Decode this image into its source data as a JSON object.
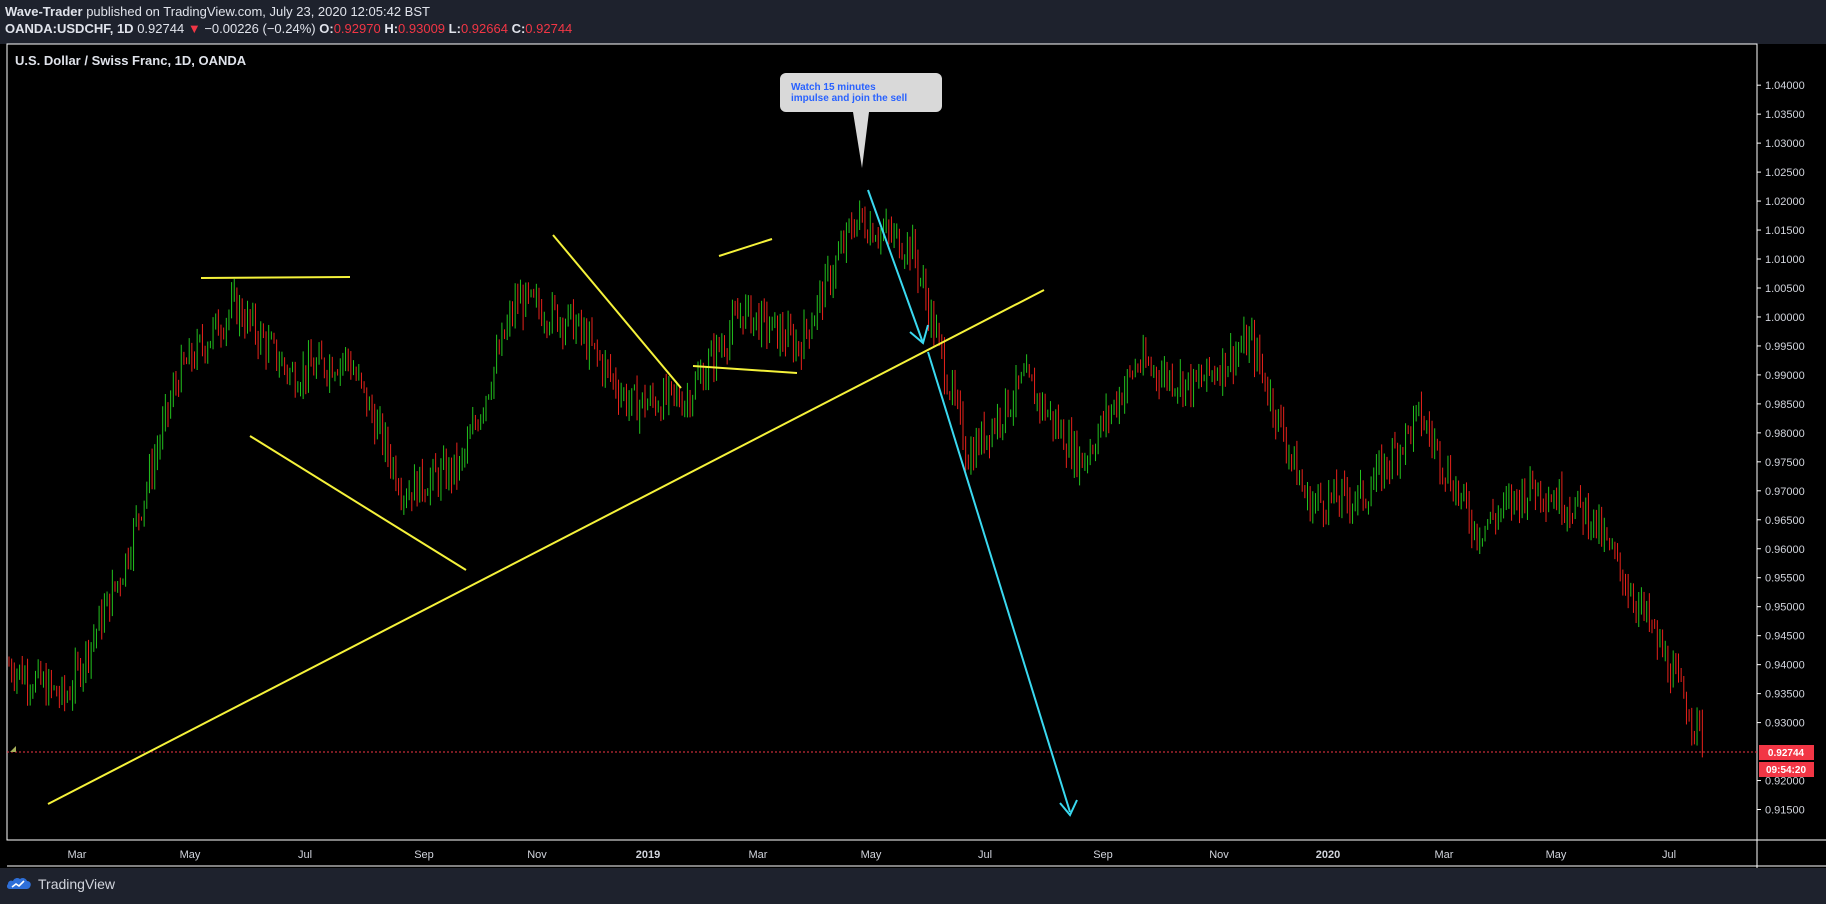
{
  "header": {
    "author": "Wave-Trader",
    "published_text": "published on TradingView.com, July 23, 2020 12:05:42 BST",
    "symbol": "OANDA:USDCHF, 1D",
    "last": "0.92744",
    "change_arrow": "▼",
    "change": "−0.00226 (−0.24%)",
    "o_label": "O:",
    "o_value": "0.92970",
    "h_label": "H:",
    "h_value": "0.93009",
    "l_label": "L:",
    "l_value": "0.92664",
    "c_label": "C:",
    "c_value": "0.92744"
  },
  "chart_title": "U.S. Dollar / Swiss Franc, 1D, OANDA",
  "annotation": {
    "line1": "Watch 15 minutes",
    "line2": "impulse and join the sell"
  },
  "price_axis": {
    "ticks": [
      "1.04000",
      "1.03500",
      "1.03000",
      "1.02500",
      "1.02000",
      "1.01500",
      "1.01000",
      "1.00500",
      "1.00000",
      "0.99500",
      "0.99000",
      "0.98500",
      "0.98000",
      "0.97500",
      "0.97000",
      "0.96500",
      "0.96000",
      "0.95500",
      "0.95000",
      "0.94500",
      "0.94000",
      "0.93500",
      "0.93000",
      "0.92000",
      "0.91500"
    ],
    "last_price_label": "0.92744",
    "countdown_label": "09:54:20"
  },
  "time_axis": {
    "ticks": [
      "Mar",
      "May",
      "Jul",
      "Sep",
      "Nov",
      "2019",
      "Mar",
      "May",
      "Jul",
      "Sep",
      "Nov",
      "2020",
      "Mar",
      "May",
      "Jul"
    ]
  },
  "footer": {
    "brand": "TradingView",
    "brand_icon": "tradingview-logo-icon"
  },
  "colors": {
    "up": "#22c11e",
    "down": "#e8221b",
    "trendline": "#f5f23a",
    "arrow": "#3ad9f0",
    "last_price": "#f23645",
    "annotation_bg": "#d9d9d9",
    "annotation_text": "#2962ff"
  },
  "chart_data": {
    "type": "candlestick",
    "symbol": "OANDA:USDCHF",
    "interval": "1D",
    "ylim": [
      0.9125,
      1.044
    ],
    "x": [
      "2018-01",
      "2018-02",
      "2018-03",
      "2018-04",
      "2018-05",
      "2018-06",
      "2018-07",
      "2018-08",
      "2018-09",
      "2018-10",
      "2018-11",
      "2018-12",
      "2019-01",
      "2019-02",
      "2019-03",
      "2019-04",
      "2019-05",
      "2019-06",
      "2019-07",
      "2019-08",
      "2019-09",
      "2019-10",
      "2019-11",
      "2019-12",
      "2020-01",
      "2020-02",
      "2020-03",
      "2020-04",
      "2020-05",
      "2020-06",
      "2020-07"
    ],
    "close": [
      0.94,
      0.934,
      0.956,
      0.99,
      1.002,
      0.99,
      0.993,
      0.97,
      0.974,
      1.003,
      0.999,
      0.985,
      0.986,
      1.001,
      0.995,
      1.017,
      1.012,
      0.976,
      0.989,
      0.975,
      0.992,
      0.988,
      0.996,
      0.968,
      0.969,
      0.983,
      0.963,
      0.971,
      0.966,
      0.948,
      0.9274
    ],
    "last_price": 0.92744
  }
}
